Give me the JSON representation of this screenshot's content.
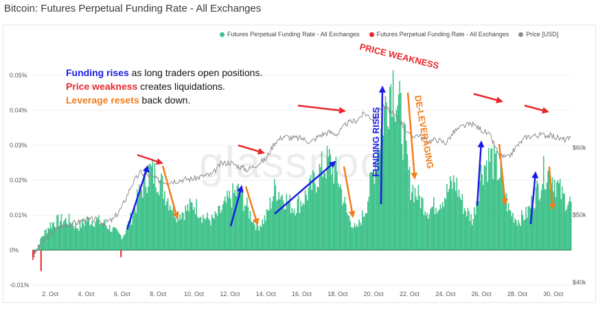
{
  "title": "Bitcoin: Futures Perpetual Funding Rate - All Exchanges",
  "watermark": "glassnode",
  "legend": [
    {
      "label": "Futures Perpetual Funding Rate - All Exchanges",
      "color": "#3fc28a"
    },
    {
      "label": "Futures Perpetual Funding Rate - All Exchanges",
      "color": "#e8262b"
    },
    {
      "label": "Price [USD]",
      "color": "#8c8c8c"
    }
  ],
  "annotations": {
    "line1_bold": "Funding rises",
    "line1_rest": " as long traders open positions.",
    "line2_bold": "Price weakness",
    "line2_rest": " creates liquidations.",
    "line3_bold": "Leverage resets",
    "line3_rest": " back down.",
    "funding_rises_vertical": "FUNDING RISES",
    "price_weakness_label": "PRICE WEAKNESS",
    "deleveraging_label": "DE-LEVERAGING",
    "colors": {
      "blue": "#1a1ae6",
      "red": "#e8262b",
      "orange": "#f07d1a"
    }
  },
  "chart_data": {
    "type": "bar",
    "x_ticks": [
      "2. Oct",
      "4. Oct",
      "6. Oct",
      "8. Oct",
      "10. Oct",
      "12. Oct",
      "14. Oct",
      "16. Oct",
      "18. Oct",
      "20. Oct",
      "22. Oct",
      "24. Oct",
      "26. Oct",
      "28. Oct",
      "30. Oct"
    ],
    "x_range_days": [
      1.0,
      31.0
    ],
    "y_left_ticks": [
      "-0.01%",
      "0%",
      "0.01%",
      "0.02%",
      "0.03%",
      "0.04%",
      "0.05%"
    ],
    "y_left_range": [
      -0.01,
      0.05
    ],
    "y_right_ticks": [
      "$40k",
      "$50k",
      "$60k"
    ],
    "y_right_range": [
      40000,
      64000
    ],
    "funding_series": {
      "name": "Futures Perpetual Funding Rate - All Exchanges",
      "day": [
        1.0,
        1.5,
        2.0,
        2.5,
        3.0,
        3.5,
        4.0,
        4.5,
        5.0,
        5.5,
        6.0,
        6.5,
        7.0,
        7.5,
        8.0,
        8.5,
        9.0,
        9.5,
        10.0,
        10.5,
        11.0,
        11.5,
        12.0,
        12.5,
        13.0,
        13.5,
        14.0,
        14.5,
        15.0,
        15.5,
        16.0,
        16.5,
        17.0,
        17.5,
        18.0,
        18.5,
        19.0,
        19.5,
        20.0,
        20.5,
        21.0,
        21.5,
        22.0,
        22.5,
        23.0,
        23.5,
        24.0,
        24.5,
        25.0,
        25.5,
        26.0,
        26.5,
        27.0,
        27.5,
        28.0,
        28.5,
        29.0,
        29.5,
        30.0,
        30.5,
        31.0
      ],
      "value_pct": [
        -0.003,
        0.004,
        0.008,
        0.009,
        0.009,
        0.007,
        0.009,
        0.009,
        0.008,
        0.006,
        0.004,
        0.01,
        0.018,
        0.024,
        0.022,
        0.016,
        0.011,
        0.012,
        0.014,
        0.01,
        0.009,
        0.012,
        0.016,
        0.018,
        0.012,
        0.007,
        0.01,
        0.019,
        0.016,
        0.013,
        0.015,
        0.019,
        0.024,
        0.027,
        0.022,
        0.011,
        0.006,
        0.012,
        0.025,
        0.04,
        0.053,
        0.04,
        0.02,
        0.016,
        0.012,
        0.014,
        0.017,
        0.021,
        0.013,
        0.009,
        0.025,
        0.028,
        0.023,
        0.012,
        0.009,
        0.011,
        0.017,
        0.024,
        0.022,
        0.016,
        0.014
      ]
    },
    "price_series": {
      "name": "Price [USD]",
      "day": [
        1.0,
        1.5,
        2.0,
        2.5,
        3.0,
        3.5,
        4.0,
        4.5,
        5.0,
        5.5,
        6.0,
        6.5,
        7.0,
        7.5,
        8.0,
        8.5,
        9.0,
        9.5,
        10.0,
        10.5,
        11.0,
        11.5,
        12.0,
        12.5,
        13.0,
        13.5,
        14.0,
        14.5,
        15.0,
        15.5,
        16.0,
        16.5,
        17.0,
        17.5,
        18.0,
        18.5,
        19.0,
        19.5,
        20.0,
        20.5,
        21.0,
        21.5,
        22.0,
        22.5,
        23.0,
        23.5,
        24.0,
        24.5,
        25.0,
        25.5,
        26.0,
        26.5,
        27.0,
        27.5,
        28.0,
        28.5,
        29.0,
        29.5,
        30.0,
        30.5,
        31.0
      ],
      "value_usd": [
        43800,
        45800,
        47200,
        48200,
        48600,
        48900,
        49300,
        49300,
        48800,
        49300,
        51200,
        54300,
        56300,
        55900,
        55200,
        54900,
        55100,
        55300,
        55400,
        55800,
        56000,
        57600,
        57800,
        57200,
        56700,
        57500,
        58300,
        60800,
        61700,
        61400,
        61400,
        60800,
        61800,
        62300,
        62000,
        63600,
        64000,
        65100,
        64200,
        66300,
        65100,
        63900,
        61700,
        61900,
        60900,
        61200,
        60700,
        62400,
        63200,
        63500,
        62700,
        61700,
        58700,
        58500,
        60300,
        61600,
        61800,
        61900,
        61700,
        61200,
        61300
      ]
    },
    "negative_series_name": "Futures Perpetual Funding Rate - All Exchanges"
  }
}
